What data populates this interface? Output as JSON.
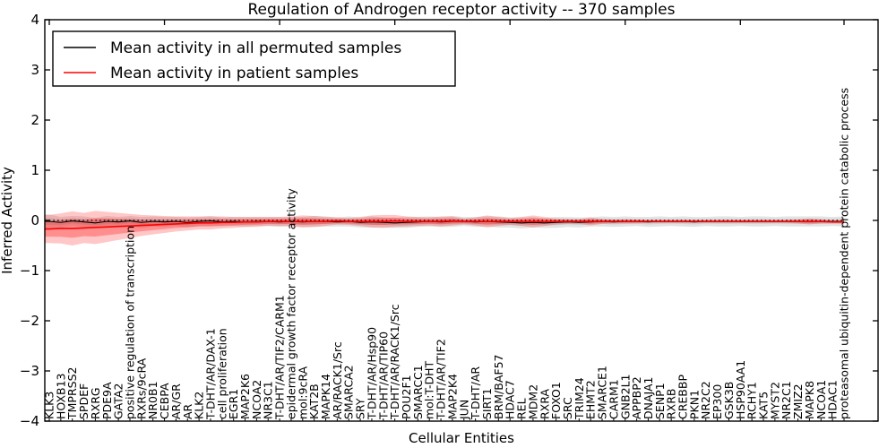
{
  "chart_data": {
    "type": "line",
    "title": "Regulation of Androgen receptor activity -- 370 samples",
    "xlabel": "Cellular Entities",
    "ylabel": "Inferred Activity",
    "ylim": [
      -4,
      4
    ],
    "yticks": [
      4,
      3,
      2,
      1,
      0,
      -1,
      -2,
      -3,
      -4
    ],
    "grid": false,
    "legend_position": "upper left",
    "zero_reference_line": 0,
    "categories": [
      "KLK3",
      "HOXB13",
      "TMPRSS2",
      "SPDEF",
      "RXRG",
      "PDE9A",
      "GATA2",
      "positive regulation of transcription",
      "RXRs/9cRA",
      "NR0B1",
      "CEBPA",
      "AR/GR",
      "AR",
      "KLK2",
      "T-DHT/AR/DAX-1",
      "cell proliferation",
      "EGR1",
      "MAP2K6",
      "NCOA2",
      "NR3C1",
      "T-DHT/AR/TIF2/CARM1",
      "epidermal growth factor receptor activity",
      "mol:9cRA",
      "KAT2B",
      "MAPK14",
      "AR/RACK1/Src",
      "SMARCA2",
      "SRY",
      "T-DHT/AR/Hsp90",
      "T-DHT/AR/TIP60",
      "T-DHT/AR/RACK1/Src",
      "POU2F1",
      "SMARCC1",
      "mol:T-DHT",
      "T-DHT/AR/TIF2",
      "MAP2K4",
      "JUN",
      "T-DHT/AR",
      "SIRT1",
      "BRM/BAF57",
      "HDAC7",
      "REL",
      "MDM2",
      "RXRA",
      "FOXO1",
      "SRC",
      "TRIM24",
      "EHMT2",
      "SMARCE1",
      "CARM1",
      "GNB2L1",
      "APPBP2",
      "DNAJA1",
      "SENP1",
      "RXRB",
      "CREBBP",
      "PKN1",
      "NR2C2",
      "EP300",
      "GSK3B",
      "HSP90AA1",
      "RCHY1",
      "KAT5",
      "MYST2",
      "NR2C1",
      "ZMIZ2",
      "MAPK8",
      "NCOA1",
      "HDAC1",
      "proteasomal ubiquitin-dependent protein catabolic process"
    ],
    "series": [
      {
        "name": "Mean activity in all permuted samples",
        "color": "#000000",
        "band_color": "#808080",
        "values": [
          -0.02,
          -0.04,
          -0.01,
          -0.03,
          -0.05,
          -0.02,
          -0.03,
          -0.01,
          -0.04,
          -0.02,
          -0.03,
          -0.02,
          -0.04,
          -0.02,
          -0.01,
          -0.03,
          -0.02,
          -0.03,
          -0.02,
          -0.02,
          -0.03,
          -0.02,
          -0.03,
          -0.02,
          -0.02,
          -0.03,
          -0.02,
          -0.04,
          -0.03,
          -0.04,
          -0.05,
          -0.04,
          -0.03,
          -0.02,
          -0.03,
          -0.02,
          -0.02,
          -0.03,
          -0.02,
          -0.03,
          -0.04,
          -0.05,
          -0.04,
          -0.05,
          -0.04,
          -0.03,
          -0.04,
          -0.03,
          -0.02,
          -0.03,
          -0.02,
          -0.02,
          -0.03,
          -0.02,
          -0.02,
          -0.02,
          -0.03,
          -0.02,
          -0.02,
          -0.02,
          -0.02,
          -0.02,
          -0.02,
          -0.02,
          -0.02,
          -0.02,
          -0.02,
          -0.02,
          -0.02,
          -0.02
        ],
        "band_halfwidth": [
          0.14,
          0.11,
          0.1,
          0.11,
          0.1,
          0.11,
          0.1,
          0.1,
          0.11,
          0.1,
          0.1,
          0.09,
          0.1,
          0.09,
          0.1,
          0.09,
          0.09,
          0.1,
          0.09,
          0.09,
          0.1,
          0.09,
          0.1,
          0.11,
          0.1,
          0.09,
          0.1,
          0.1,
          0.11,
          0.1,
          0.1,
          0.11,
          0.1,
          0.1,
          0.1,
          0.11,
          0.09,
          0.1,
          0.1,
          0.11,
          0.1,
          0.11,
          0.1,
          0.1,
          0.11,
          0.1,
          0.1,
          0.09,
          0.1,
          0.1,
          0.1,
          0.09,
          0.1,
          0.1,
          0.09,
          0.1,
          0.1,
          0.09,
          0.1,
          0.1,
          0.09,
          0.1,
          0.1,
          0.09,
          0.1,
          0.1,
          0.1,
          0.1,
          0.09,
          0.1
        ]
      },
      {
        "name": "Mean activity in patient samples",
        "color": "#ff0000",
        "band_color": "#ff0000",
        "values": [
          -0.17,
          -0.16,
          -0.16,
          -0.15,
          -0.14,
          -0.13,
          -0.12,
          -0.11,
          -0.1,
          -0.09,
          -0.08,
          -0.07,
          -0.06,
          -0.05,
          -0.05,
          -0.04,
          -0.04,
          -0.03,
          -0.03,
          -0.02,
          -0.02,
          -0.02,
          -0.02,
          -0.02,
          -0.02,
          -0.01,
          -0.02,
          -0.02,
          -0.02,
          -0.02,
          -0.01,
          -0.02,
          -0.02,
          -0.02,
          -0.02,
          -0.01,
          -0.02,
          -0.02,
          -0.02,
          -0.02,
          -0.02,
          -0.02,
          -0.02,
          -0.02,
          -0.02,
          -0.02,
          -0.02,
          -0.02,
          -0.02,
          -0.02,
          -0.02,
          -0.02,
          -0.02,
          -0.02,
          -0.02,
          -0.02,
          -0.02,
          -0.02,
          -0.02,
          -0.02,
          -0.02,
          -0.02,
          -0.02,
          -0.02,
          -0.02,
          -0.02,
          -0.02,
          -0.02,
          -0.03,
          -0.03
        ],
        "band_halfwidth": [
          0.28,
          0.3,
          0.34,
          0.3,
          0.33,
          0.3,
          0.27,
          0.24,
          0.21,
          0.19,
          0.17,
          0.15,
          0.14,
          0.13,
          0.13,
          0.12,
          0.11,
          0.1,
          0.1,
          0.09,
          0.09,
          0.1,
          0.12,
          0.11,
          0.09,
          0.07,
          0.07,
          0.09,
          0.12,
          0.13,
          0.12,
          0.1,
          0.09,
          0.08,
          0.1,
          0.09,
          0.06,
          0.08,
          0.12,
          0.09,
          0.07,
          0.09,
          0.12,
          0.09,
          0.06,
          0.05,
          0.05,
          0.08,
          0.05,
          0.04,
          0.04,
          0.04,
          0.03,
          0.03,
          0.03,
          0.03,
          0.03,
          0.03,
          0.03,
          0.03,
          0.03,
          0.03,
          0.03,
          0.03,
          0.03,
          0.04,
          0.06,
          0.04,
          0.03,
          0.03
        ]
      }
    ],
    "legend": {
      "entries": [
        {
          "label": "Mean activity in all permuted samples",
          "color": "#000000"
        },
        {
          "label": "Mean activity in patient samples",
          "color": "#ff0000"
        }
      ]
    }
  }
}
